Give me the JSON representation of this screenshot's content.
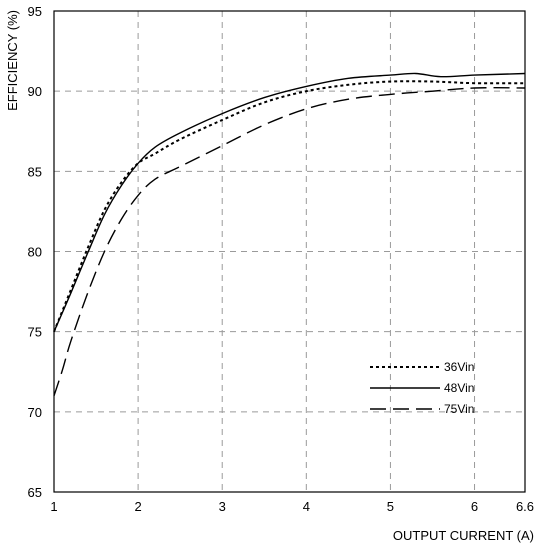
{
  "chart_data": {
    "type": "line",
    "title": "",
    "xlabel": "OUTPUT CURRENT (A)",
    "ylabel": "EFFICIENCY (%)",
    "xlim": [
      1,
      6.6
    ],
    "ylim": [
      65,
      95
    ],
    "x_ticks": [
      1,
      2,
      3,
      4,
      5,
      6,
      6.6
    ],
    "x_tick_labels": [
      "1",
      "2",
      "3",
      "4",
      "5",
      "6",
      "6.6"
    ],
    "y_ticks": [
      65,
      70,
      75,
      80,
      85,
      90,
      95
    ],
    "y_tick_labels": [
      "65",
      "70",
      "75",
      "80",
      "85",
      "90",
      "95"
    ],
    "grid": true,
    "legend_position": "bottom-right",
    "series": [
      {
        "name": "36Vin",
        "style": "dotted",
        "color": "#000000",
        "x": [
          1.0,
          1.2,
          1.4,
          1.6,
          1.8,
          2.0,
          2.2,
          2.5,
          3.0,
          3.5,
          4.0,
          4.5,
          5.0,
          5.5,
          6.0,
          6.6
        ],
        "y": [
          75.0,
          77.6,
          80.2,
          82.6,
          84.3,
          85.5,
          86.1,
          87.0,
          88.2,
          89.3,
          90.0,
          90.4,
          90.6,
          90.6,
          90.5,
          90.5
        ]
      },
      {
        "name": "48Vin",
        "style": "solid",
        "color": "#000000",
        "x": [
          1.0,
          1.2,
          1.4,
          1.6,
          1.8,
          2.0,
          2.2,
          2.5,
          3.0,
          3.5,
          4.0,
          4.5,
          5.0,
          5.3,
          5.6,
          6.0,
          6.6
        ],
        "y": [
          75.0,
          77.4,
          79.9,
          82.3,
          84.1,
          85.5,
          86.5,
          87.4,
          88.6,
          89.6,
          90.3,
          90.8,
          91.0,
          91.1,
          90.9,
          91.0,
          91.1
        ]
      },
      {
        "name": "75Vin",
        "style": "long-dash",
        "color": "#000000",
        "x": [
          1.0,
          1.1,
          1.2,
          1.4,
          1.6,
          1.8,
          2.0,
          2.2,
          2.5,
          3.0,
          3.5,
          4.0,
          4.5,
          5.0,
          5.5,
          6.0,
          6.6
        ],
        "y": [
          71.0,
          72.6,
          74.4,
          77.4,
          80.0,
          82.0,
          83.5,
          84.5,
          85.3,
          86.6,
          87.9,
          88.9,
          89.5,
          89.8,
          90.0,
          90.2,
          90.2
        ]
      }
    ]
  }
}
